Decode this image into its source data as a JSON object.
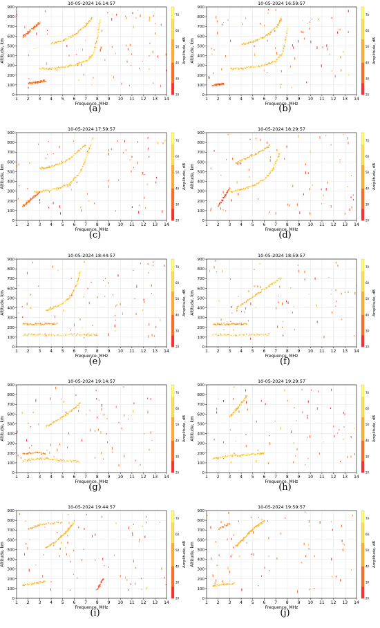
{
  "figure": {
    "colormap": [
      "#ff2a2a",
      "#ff6a1a",
      "#ffae2a",
      "#ffe14d",
      "#ffff66"
    ],
    "colorbar_label": "Amplitude, dB",
    "colorbar_ticks": [
      "20",
      "30",
      "40",
      "50",
      "60",
      "70"
    ],
    "xlabel": "Frequence, MHz",
    "ylabel": "Altitude, km",
    "xticks": [
      "1",
      "2",
      "3",
      "4",
      "5",
      "6",
      "7",
      "8",
      "9",
      "10",
      "11",
      "12",
      "13",
      "14"
    ],
    "yticks": [
      "0",
      "100",
      "200",
      "300",
      "400",
      "500",
      "600",
      "700",
      "800",
      "900"
    ]
  },
  "chart_data": [
    {
      "type": "scatter",
      "caption": "(a)",
      "title": "10-05-2024 16:14:57",
      "xlabel": "Frequence, MHz",
      "ylabel": "Altitude, km",
      "xlim": [
        1,
        14
      ],
      "ylim": [
        0,
        900
      ],
      "colorbar": {
        "label": "Amplitude, dB",
        "range": [
          20,
          75
        ]
      },
      "traces": [
        {
          "name": "",
          "x": [
            3.0,
            4.0,
            5.0,
            6.0,
            7.0,
            7.6,
            8.0,
            8.2
          ],
          "y": [
            270,
            275,
            290,
            310,
            350,
            420,
            600,
            790
          ],
          "amp": 55
        },
        {
          "name": "",
          "x": [
            4.0,
            5.0,
            6.0,
            7.0,
            7.5
          ],
          "y": [
            530,
            560,
            620,
            720,
            800
          ],
          "amp": 50
        },
        {
          "name": "",
          "x": [
            2.0,
            2.5,
            3.0,
            3.5
          ],
          "y": [
            120,
            125,
            140,
            150
          ],
          "amp": 35
        },
        {
          "name": "",
          "x": [
            1.5,
            2.0,
            2.5,
            3.0
          ],
          "y": [
            600,
            650,
            700,
            750
          ],
          "amp": 35
        }
      ]
    },
    {
      "type": "scatter",
      "caption": "(b)",
      "title": "10-05-2024 16:59:57",
      "xlabel": "Frequence, MHz",
      "ylabel": "Altitude, km",
      "xlim": [
        1,
        14
      ],
      "ylim": [
        0,
        900
      ],
      "colorbar": {
        "label": "Amplitude, dB",
        "range": [
          20,
          75
        ]
      },
      "traces": [
        {
          "name": "",
          "x": [
            3.0,
            4.0,
            5.0,
            6.0,
            7.0,
            7.6,
            8.0
          ],
          "y": [
            270,
            275,
            290,
            310,
            350,
            450,
            700
          ],
          "amp": 55
        },
        {
          "name": "",
          "x": [
            4.0,
            5.0,
            6.0,
            7.0,
            7.5
          ],
          "y": [
            520,
            550,
            600,
            700,
            800
          ],
          "amp": 50
        },
        {
          "name": "",
          "x": [
            1.5,
            2.0,
            2.5
          ],
          "y": [
            100,
            110,
            120
          ],
          "amp": 30
        }
      ]
    },
    {
      "type": "scatter",
      "caption": "(c)",
      "title": "10-05-2024 17:59:57",
      "xlabel": "Frequence, MHz",
      "ylabel": "Altitude, km",
      "xlim": [
        1,
        14
      ],
      "ylim": [
        0,
        900
      ],
      "colorbar": {
        "label": "Amplitude, dB",
        "range": [
          20,
          75
        ]
      },
      "traces": [
        {
          "name": "",
          "x": [
            2.5,
            3.5,
            4.5,
            5.5,
            6.5,
            7.0,
            7.4
          ],
          "y": [
            300,
            310,
            330,
            380,
            500,
            650,
            800
          ],
          "amp": 55
        },
        {
          "name": "",
          "x": [
            3.0,
            4.0,
            5.0,
            6.0,
            7.0
          ],
          "y": [
            540,
            560,
            600,
            680,
            790
          ],
          "amp": 50
        },
        {
          "name": "",
          "x": [
            1.5,
            2.0,
            2.5,
            3.0
          ],
          "y": [
            150,
            200,
            250,
            300
          ],
          "amp": 35
        }
      ]
    },
    {
      "type": "scatter",
      "caption": "(d)",
      "title": "10-05-2024 18:29:57",
      "xlabel": "Frequence, MHz",
      "ylabel": "Altitude, km",
      "xlim": [
        1,
        14
      ],
      "ylim": [
        0,
        900
      ],
      "colorbar": {
        "label": "Amplitude, dB",
        "range": [
          20,
          75
        ]
      },
      "traces": [
        {
          "name": "",
          "x": [
            3.0,
            4.0,
            5.0,
            6.0,
            6.8,
            7.3
          ],
          "y": [
            300,
            320,
            360,
            430,
            550,
            700
          ],
          "amp": 55
        },
        {
          "name": "",
          "x": [
            3.5,
            4.5,
            5.5,
            6.5
          ],
          "y": [
            600,
            650,
            700,
            780
          ],
          "amp": 50
        },
        {
          "name": "",
          "x": [
            2.0,
            2.5,
            3.0
          ],
          "y": [
            150,
            250,
            350
          ],
          "amp": 30
        }
      ]
    },
    {
      "type": "scatter",
      "caption": "(e)",
      "title": "10-05-2024 18:44:57",
      "xlabel": "Frequence, MHz",
      "ylabel": "Altitude, km",
      "xlim": [
        1,
        14
      ],
      "ylim": [
        0,
        900
      ],
      "colorbar": {
        "label": "Amplitude, dB",
        "range": [
          20,
          75
        ]
      },
      "traces": [
        {
          "name": "",
          "x": [
            3.5,
            4.5,
            5.5,
            6.2,
            6.5
          ],
          "y": [
            380,
            420,
            500,
            650,
            790
          ],
          "amp": 55
        },
        {
          "name": "",
          "x": [
            1.5,
            3.0,
            5.0,
            7.0,
            8.0
          ],
          "y": [
            130,
            130,
            130,
            130,
            130
          ],
          "amp": 55
        },
        {
          "name": "",
          "x": [
            1.5,
            2.5,
            3.5,
            4.5
          ],
          "y": [
            240,
            240,
            240,
            240
          ],
          "amp": 45
        }
      ]
    },
    {
      "type": "scatter",
      "caption": "(f)",
      "title": "10-05-2024 18:59:57",
      "xlabel": "Frequence, MHz",
      "ylabel": "Altitude, km",
      "xlim": [
        1,
        14
      ],
      "ylim": [
        0,
        900
      ],
      "colorbar": {
        "label": "Amplitude, dB",
        "range": [
          20,
          75
        ]
      },
      "traces": [
        {
          "name": "",
          "x": [
            3.5,
            4.5,
            5.5,
            6.5,
            7.5
          ],
          "y": [
            400,
            480,
            560,
            640,
            720
          ],
          "amp": 50
        },
        {
          "name": "",
          "x": [
            1.5,
            3.0,
            5.0,
            6.5
          ],
          "y": [
            130,
            130,
            130,
            130
          ],
          "amp": 55
        },
        {
          "name": "",
          "x": [
            1.5,
            2.5,
            3.5,
            4.5
          ],
          "y": [
            240,
            240,
            240,
            240
          ],
          "amp": 45
        }
      ]
    },
    {
      "type": "scatter",
      "caption": "(g)",
      "title": "10-05-2024 19:14:57",
      "xlabel": "Frequence, MHz",
      "ylabel": "Altitude, km",
      "xlim": [
        1,
        14
      ],
      "ylim": [
        0,
        900
      ],
      "colorbar": {
        "label": "Amplitude, dB",
        "range": [
          20,
          75
        ]
      },
      "traces": [
        {
          "name": "",
          "x": [
            3.5,
            4.5,
            5.5,
            6.5
          ],
          "y": [
            480,
            540,
            620,
            720
          ],
          "amp": 50
        },
        {
          "name": "",
          "x": [
            1.5,
            2.5,
            3.5,
            5.0,
            6.5
          ],
          "y": [
            130,
            140,
            150,
            130,
            120
          ],
          "amp": 50
        },
        {
          "name": "",
          "x": [
            1.5,
            2.5,
            3.5
          ],
          "y": [
            200,
            210,
            200
          ],
          "amp": 40
        }
      ]
    },
    {
      "type": "scatter",
      "caption": "(h)",
      "title": "10-05-2024 19:29:57",
      "xlabel": "Frequence, MHz",
      "ylabel": "Altitude, km",
      "xlim": [
        1,
        14
      ],
      "ylim": [
        0,
        900
      ],
      "colorbar": {
        "label": "Amplitude, dB",
        "range": [
          20,
          75
        ]
      },
      "traces": [
        {
          "name": "",
          "x": [
            3.0,
            3.5,
            4.0,
            4.5
          ],
          "y": [
            580,
            650,
            720,
            800
          ],
          "amp": 50
        },
        {
          "name": "",
          "x": [
            1.5,
            2.5,
            3.5,
            4.5,
            5.5,
            6.0
          ],
          "y": [
            150,
            170,
            180,
            190,
            200,
            210
          ],
          "amp": 55
        }
      ]
    },
    {
      "type": "scatter",
      "caption": "(i)",
      "title": "10-05-2024 19:44:57",
      "xlabel": "Frequence, MHz",
      "ylabel": "Altitude, km",
      "xlim": [
        1,
        14
      ],
      "ylim": [
        0,
        900
      ],
      "colorbar": {
        "label": "Amplitude, dB",
        "range": [
          20,
          75
        ]
      },
      "traces": [
        {
          "name": "",
          "x": [
            3.5,
            4.5,
            5.0,
            5.5,
            6.0
          ],
          "y": [
            520,
            600,
            660,
            720,
            800
          ],
          "amp": 50
        },
        {
          "name": "",
          "x": [
            2.0,
            3.0,
            5.0
          ],
          "y": [
            720,
            760,
            790
          ],
          "amp": 45
        },
        {
          "name": "",
          "x": [
            1.5,
            2.5,
            3.5
          ],
          "y": [
            140,
            160,
            180
          ],
          "amp": 50
        },
        {
          "name": "",
          "x": [
            8.0,
            8.5
          ],
          "y": [
            100,
            220
          ],
          "amp": 30
        }
      ]
    },
    {
      "type": "scatter",
      "caption": "(j)",
      "title": "10-05-2024 19:59:57",
      "xlabel": "Frequence, MHz",
      "ylabel": "Altitude, km",
      "xlim": [
        1,
        14
      ],
      "ylim": [
        0,
        900
      ],
      "colorbar": {
        "label": "Amplitude, dB",
        "range": [
          20,
          75
        ]
      },
      "traces": [
        {
          "name": "",
          "x": [
            3.5,
            4.0,
            4.5,
            5.0,
            5.5,
            6.0
          ],
          "y": [
            540,
            600,
            660,
            720,
            760,
            800
          ],
          "amp": 50
        },
        {
          "name": "",
          "x": [
            2.0,
            3.0
          ],
          "y": [
            720,
            780
          ],
          "amp": 40
        },
        {
          "name": "",
          "x": [
            1.5,
            2.5,
            3.5
          ],
          "y": [
            130,
            150,
            160
          ],
          "amp": 50
        }
      ]
    }
  ]
}
